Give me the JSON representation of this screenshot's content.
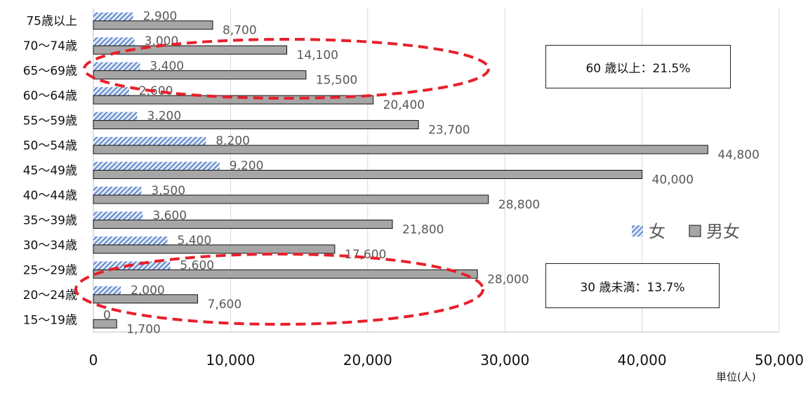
{
  "chart_data": {
    "type": "bar",
    "orientation": "horizontal",
    "categories": [
      "75歳以上",
      "70〜74歳",
      "65〜69歳",
      "60〜64歳",
      "55〜59歳",
      "50〜54歳",
      "45〜49歳",
      "40〜44歳",
      "35〜39歳",
      "30〜34歳",
      "25〜29歳",
      "20〜24歳",
      "15〜19歳"
    ],
    "series": [
      {
        "name": "女",
        "values": [
          2900,
          3000,
          3400,
          2600,
          3200,
          8200,
          9200,
          3500,
          3600,
          5400,
          5600,
          2000,
          0
        ],
        "labels": [
          "2,900",
          "3,000",
          "3,400",
          "2,600",
          "3,200",
          "8,200",
          "9,200",
          "3,500",
          "3,600",
          "5,400",
          "5,600",
          "2,000",
          "0"
        ],
        "color": "#4472c4",
        "pattern": "diagonal-hatch"
      },
      {
        "name": "男女",
        "values": [
          8700,
          14100,
          15500,
          20400,
          23700,
          44800,
          40000,
          28800,
          21800,
          17600,
          28000,
          7600,
          1700
        ],
        "labels": [
          "8,700",
          "14,100",
          "15,500",
          "20,400",
          "23,700",
          "44,800",
          "40,000",
          "28,800",
          "21,800",
          "17,600",
          "28,000",
          "7,600",
          "1,700"
        ],
        "color": "#a6a6a6"
      }
    ],
    "xlim": [
      0,
      50000
    ],
    "xticks": [
      0,
      10000,
      20000,
      30000,
      40000,
      50000
    ],
    "xtick_labels": [
      "0",
      "10,000",
      "20,000",
      "30,000",
      "40,000",
      "50,000"
    ],
    "grid": "vertical",
    "legend_position": "right",
    "unit_label": "単位(人)",
    "annotations": [
      {
        "text": "60 歳以上：21.5%",
        "highlights": [
          "70〜74歳",
          "65〜69歳",
          "60〜64歳"
        ]
      },
      {
        "text": "30 歳未満：13.7%",
        "highlights": [
          "25〜29歳",
          "20〜24歳",
          "15〜19歳"
        ]
      }
    ],
    "highlight_color": "#e8202a"
  }
}
